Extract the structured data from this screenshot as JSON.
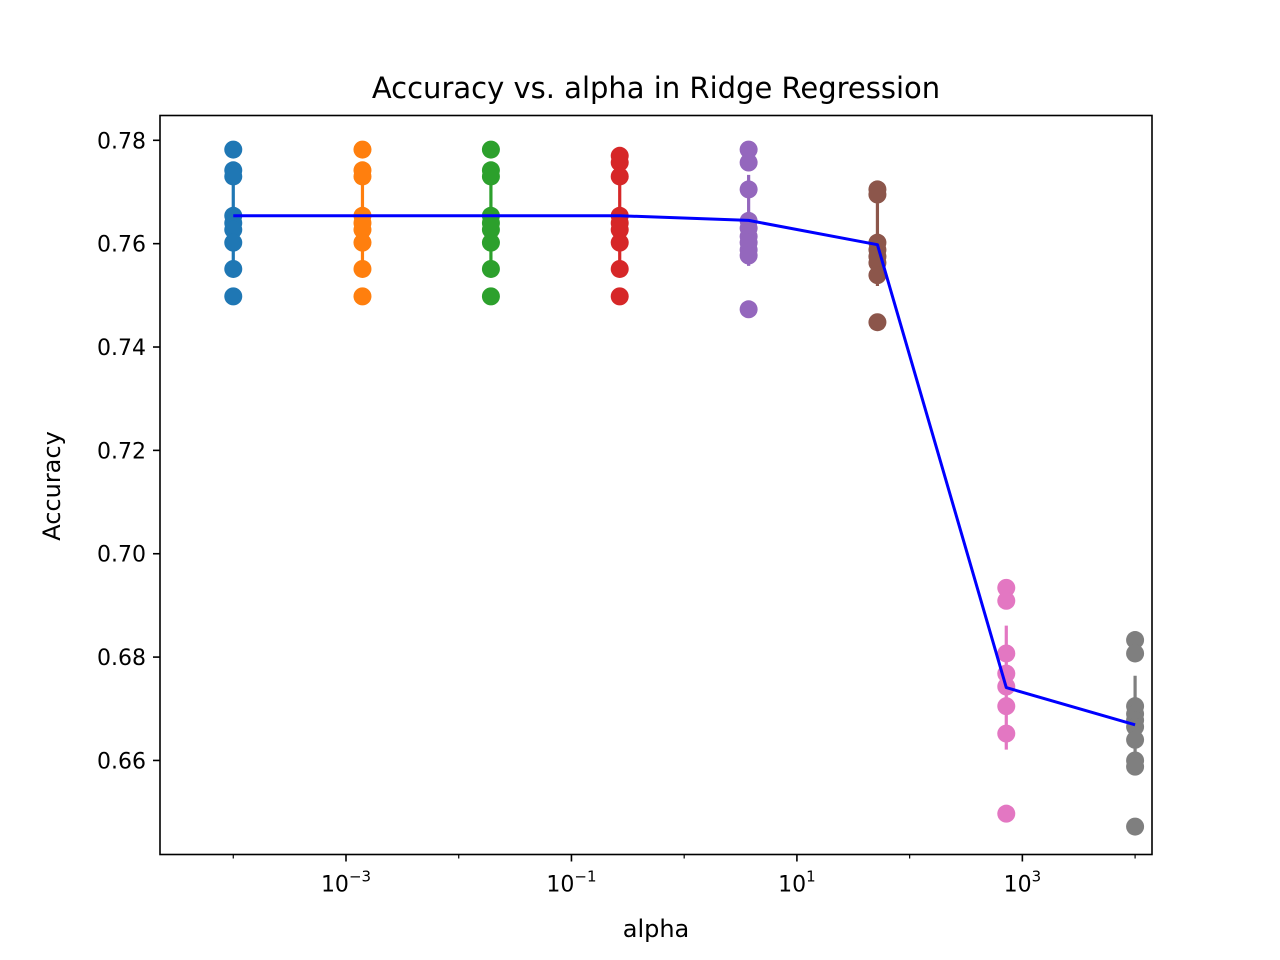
{
  "chart_data": {
    "type": "scatter",
    "title": "Accuracy vs. alpha in Ridge Regression",
    "xlabel": "alpha",
    "ylabel": "Accuracy",
    "x_scale": "log",
    "x_log_range": [
      -4.65,
      4.15
    ],
    "ylim": [
      0.6418,
      0.7848
    ],
    "y_ticks": [
      0.66,
      0.68,
      0.7,
      0.72,
      0.74,
      0.76,
      0.78
    ],
    "y_tick_labels": [
      "0.66",
      "0.68",
      "0.70",
      "0.72",
      "0.74",
      "0.76",
      "0.78"
    ],
    "x_ticks": [
      {
        "log": -3,
        "base": "10",
        "exp": "−3"
      },
      {
        "log": -1,
        "base": "10",
        "exp": "−1"
      },
      {
        "log": 1,
        "base": "10",
        "exp": "1"
      },
      {
        "log": 3,
        "base": "10",
        "exp": "3"
      }
    ],
    "grid": false,
    "mean_line_color": "#0000ff",
    "series": [
      {
        "alpha": 0.0001,
        "color": "#1f77b4",
        "mean": 0.7654,
        "std": 0.0093,
        "values": [
          0.7782,
          0.7742,
          0.773,
          0.7654,
          0.764,
          0.7627,
          0.7602,
          0.7551,
          0.7498
        ]
      },
      {
        "alpha": 0.0014,
        "color": "#ff7f0e",
        "mean": 0.7654,
        "std": 0.0093,
        "values": [
          0.7782,
          0.7742,
          0.773,
          0.7654,
          0.764,
          0.7627,
          0.7602,
          0.7551,
          0.7498
        ]
      },
      {
        "alpha": 0.0193,
        "color": "#2ca02c",
        "mean": 0.7654,
        "std": 0.0093,
        "values": [
          0.7782,
          0.7742,
          0.773,
          0.7654,
          0.764,
          0.7627,
          0.7602,
          0.7551,
          0.7498
        ]
      },
      {
        "alpha": 0.268,
        "color": "#d62728",
        "mean": 0.7654,
        "std": 0.0093,
        "values": [
          0.777,
          0.7757,
          0.773,
          0.7654,
          0.764,
          0.7627,
          0.7602,
          0.7551,
          0.7498
        ]
      },
      {
        "alpha": 3.73,
        "color": "#9467bd",
        "mean": 0.7645,
        "std": 0.0088,
        "values": [
          0.7782,
          0.7757,
          0.7705,
          0.7644,
          0.763,
          0.7614,
          0.7602,
          0.7588,
          0.7577,
          0.7473
        ]
      },
      {
        "alpha": 51.8,
        "color": "#8c564b",
        "mean": 0.7598,
        "std": 0.008,
        "values": [
          0.7705,
          0.7695,
          0.7602,
          0.7588,
          0.7575,
          0.7563,
          0.7539,
          0.7448
        ]
      },
      {
        "alpha": 720,
        "color": "#e377c2",
        "mean": 0.6741,
        "std": 0.012,
        "values": [
          0.6934,
          0.6909,
          0.6807,
          0.6768,
          0.6743,
          0.6705,
          0.6652,
          0.6497
        ]
      },
      {
        "alpha": 10000,
        "color": "#7f7f7f",
        "mean": 0.6669,
        "std": 0.0095,
        "values": [
          0.6833,
          0.6807,
          0.6705,
          0.669,
          0.6678,
          0.6665,
          0.664,
          0.66,
          0.6588,
          0.6472
        ]
      }
    ]
  }
}
